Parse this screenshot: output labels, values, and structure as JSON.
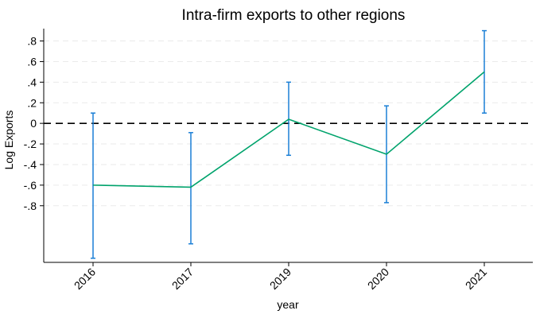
{
  "chart_data": {
    "type": "line",
    "title": "Intra-firm exports to other regions",
    "xlabel": "year",
    "ylabel": "Log Exports",
    "categories": [
      "2016",
      "2017",
      "2019",
      "2020",
      "2021"
    ],
    "series": [
      {
        "values": [
          -0.6,
          -0.62,
          0.04,
          -0.3,
          0.5
        ],
        "ci_low": [
          -1.31,
          -1.17,
          -0.31,
          -0.77,
          0.1
        ],
        "ci_high": [
          0.1,
          -0.09,
          0.4,
          0.17,
          0.9
        ],
        "line_color": "#00a36c",
        "ci_color": "#1a7fd6"
      }
    ],
    "yticks": [
      -0.8,
      -0.6,
      -0.4,
      -0.2,
      0,
      0.2,
      0.4,
      0.6,
      0.8
    ],
    "ytick_labels": [
      "-.8",
      "-.6",
      "-.4",
      "-.2",
      "0",
      ".2",
      ".4",
      ".6",
      ".8"
    ],
    "ylim": [
      -1.35,
      0.92
    ],
    "reference_line": {
      "y": 0,
      "style": "dashed",
      "color": "#000000"
    },
    "grid": true,
    "legend": "none"
  }
}
